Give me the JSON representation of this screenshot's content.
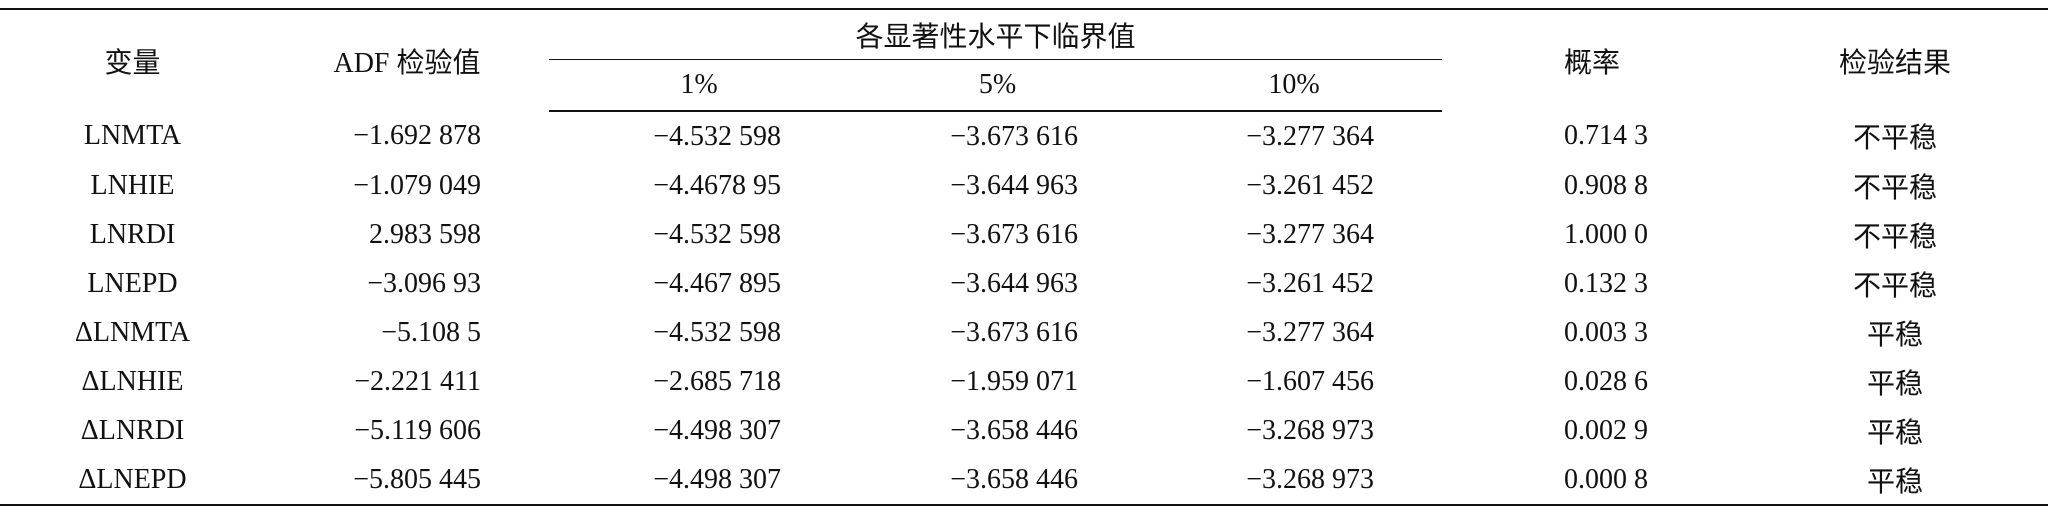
{
  "table": {
    "header": {
      "columns": [
        "变量",
        "ADF 检验值",
        "概率",
        "检验结果"
      ],
      "group": "各显著性水平下临界值",
      "sub": [
        "1%",
        "5%",
        "10%"
      ]
    },
    "rows": [
      [
        "LNMTA",
        "−1.692 878",
        "−4.532 598",
        "−3.673 616",
        "−3.277 364",
        "0.714 3",
        "不平稳"
      ],
      [
        "LNHIE",
        "−1.079 049",
        "−4.4678 95",
        "−3.644 963",
        "−3.261 452",
        "0.908 8",
        "不平稳"
      ],
      [
        "LNRDI",
        "2.983 598",
        "−4.532 598",
        "−3.673 616",
        "−3.277 364",
        "1.000 0",
        "不平稳"
      ],
      [
        "LNEPD",
        "−3.096 93",
        "−4.467 895",
        "−3.644 963",
        "−3.261 452",
        "0.132 3",
        "不平稳"
      ],
      [
        "ΔLNMTA",
        "−5.108 5",
        "−4.532 598",
        "−3.673 616",
        "−3.277 364",
        "0.003 3",
        "平稳"
      ],
      [
        "ΔLNHIE",
        "−2.221 411",
        "−2.685 718",
        "−1.959 071",
        "−1.607 456",
        "0.028 6",
        "平稳"
      ],
      [
        "ΔLNRDI",
        "−5.119 606",
        "−4.498 307",
        "−3.658 446",
        "−3.268 973",
        "0.002 9",
        "平稳"
      ],
      [
        "ΔLNEPD",
        "−5.805 445",
        "−4.498 307",
        "−3.658 446",
        "−3.268 973",
        "0.000 8",
        "平稳"
      ]
    ]
  }
}
